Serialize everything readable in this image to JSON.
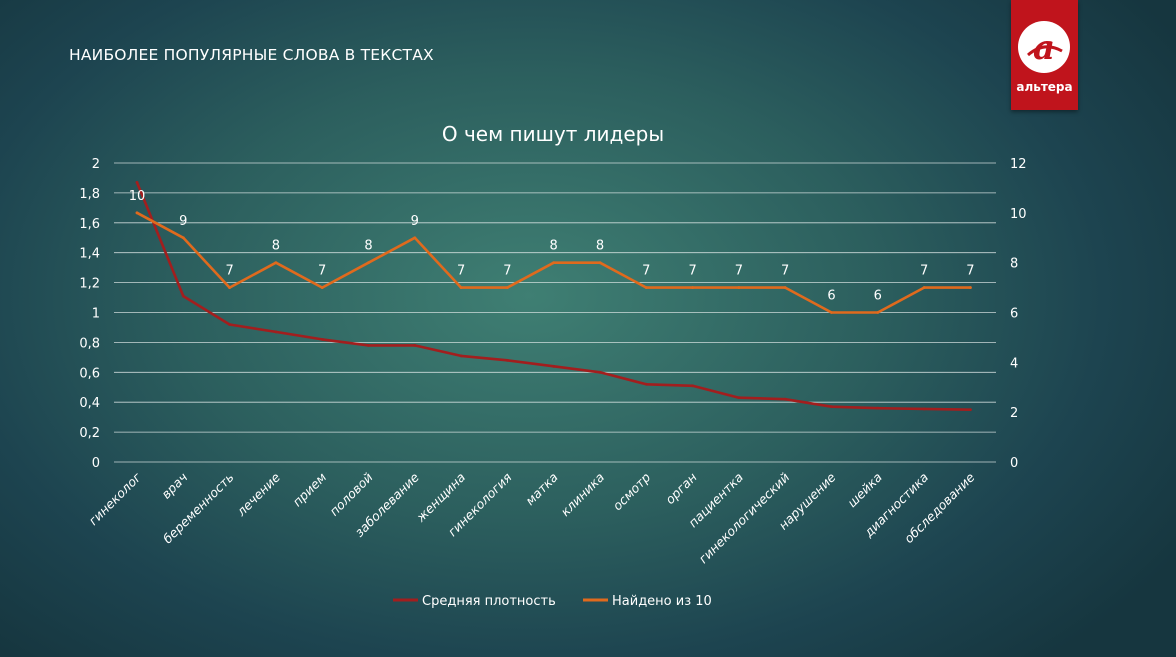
{
  "slide": {
    "title": "НАИБОЛЕЕ ПОПУЛЯРНЫЕ СЛОВА В ТЕКСТАХ",
    "logo_text": "альтера",
    "logo_letter": "а"
  },
  "colors": {
    "density_line": "#a21e1e",
    "found_line": "#e06a1d",
    "logo_red": "#c0141c"
  },
  "chart_data": {
    "type": "line",
    "title": "О чем пишут лидеры",
    "categories": [
      "гинеколог",
      "врач",
      "беременность",
      "лечение",
      "прием",
      "половой",
      "заболевание",
      "женщина",
      "гинекология",
      "матка",
      "клиника",
      "осмотр",
      "орган",
      "пациентка",
      "гинекологический",
      "нарушение",
      "шейка",
      "диагностика",
      "обследование"
    ],
    "series": [
      {
        "name": "Средняя плотность",
        "axis": "left",
        "color": "#a21e1e",
        "values": [
          1.87,
          1.11,
          0.92,
          0.87,
          0.82,
          0.78,
          0.78,
          0.71,
          0.68,
          0.64,
          0.6,
          0.52,
          0.51,
          0.43,
          0.42,
          0.37,
          0.36,
          0.355,
          0.35
        ]
      },
      {
        "name": "Найдено из 10",
        "axis": "right",
        "color": "#e06a1d",
        "values": [
          10,
          9,
          7,
          8,
          7,
          8,
          9,
          7,
          7,
          8,
          8,
          7,
          7,
          7,
          7,
          6,
          6,
          7,
          7
        ],
        "data_labels": [
          "10",
          "9",
          "7",
          "8",
          "7",
          "8",
          "9",
          "7",
          "7",
          "8",
          "8",
          "7",
          "7",
          "7",
          "7",
          "6",
          "6",
          "7",
          "7"
        ]
      }
    ],
    "y_left": {
      "min": 0,
      "max": 2,
      "ticks": [
        "0",
        "0,2",
        "0,4",
        "0,6",
        "0,8",
        "1",
        "1,2",
        "1,4",
        "1,6",
        "1,8",
        "2"
      ]
    },
    "y_right": {
      "min": 0,
      "max": 12,
      "ticks": [
        "0",
        "2",
        "4",
        "6",
        "8",
        "10",
        "12"
      ]
    },
    "legend": {
      "position": "bottom",
      "items": [
        "Средняя плотность",
        "Найдено из 10"
      ]
    },
    "grid": true
  }
}
